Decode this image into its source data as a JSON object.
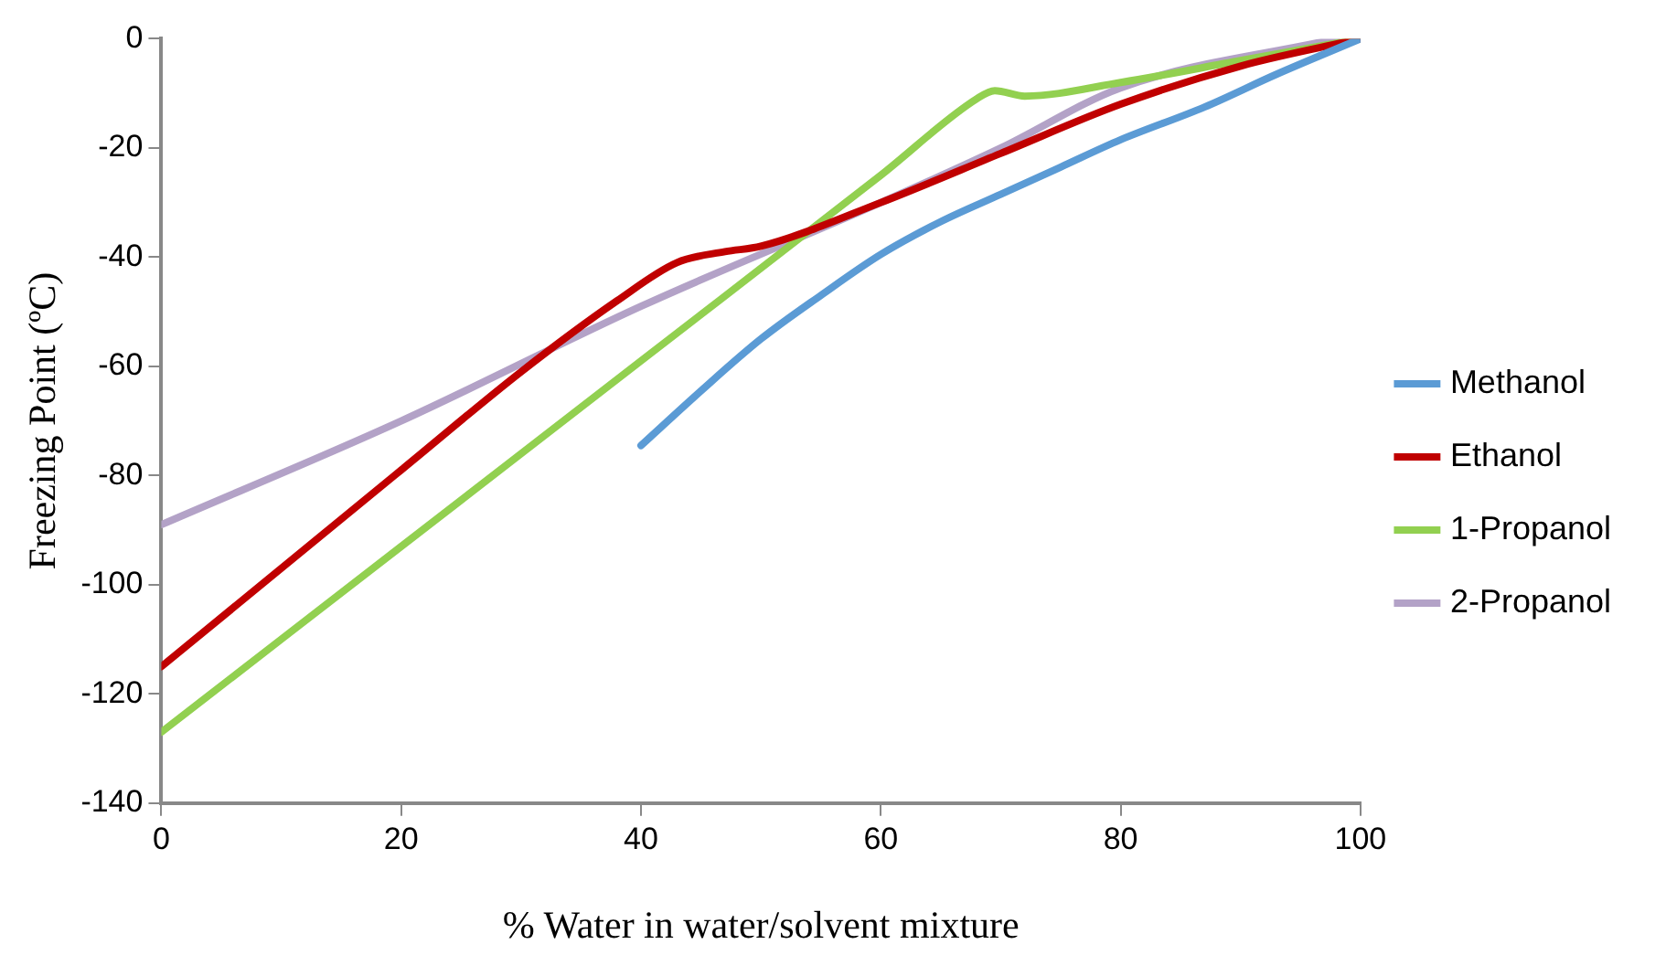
{
  "chart_data": {
    "type": "line",
    "xlabel": "% Water in water/solvent mixture",
    "ylabel": "Freezing Point (ºC)",
    "xlim": [
      0,
      100
    ],
    "xticks": [
      0,
      20,
      40,
      60,
      80,
      100
    ],
    "ylim": [
      -140,
      0
    ],
    "yticks": [
      -140,
      -120,
      -100,
      -80,
      -60,
      -40,
      -20,
      0
    ],
    "grid": false,
    "legend": "right",
    "marker": "none",
    "line_style": "solid",
    "series": [
      {
        "name": "Methanol",
        "color": "#5b9bd5",
        "x": [
          40,
          45,
          50,
          55,
          60,
          65,
          70,
          75,
          80,
          87,
          93,
          100
        ],
        "values": [
          -74.5,
          -64.5,
          -55,
          -47,
          -39.5,
          -33.5,
          -28.5,
          -23.5,
          -18.5,
          -12.5,
          -6.5,
          0
        ]
      },
      {
        "name": "Ethanol",
        "color": "#c00000",
        "x": [
          0,
          20,
          30,
          38,
          43,
          47,
          50,
          60,
          70,
          80,
          90,
          100
        ],
        "values": [
          -115,
          -79,
          -61,
          -48,
          -41,
          -39,
          -38,
          -30,
          -21,
          -12,
          -5,
          0
        ]
      },
      {
        "name": "1-Propanol",
        "color": "#92d050",
        "x": [
          0,
          20,
          40,
          60,
          68,
          69.5,
          72,
          80,
          90,
          100
        ],
        "values": [
          -127,
          -93,
          -59,
          -25,
          -11,
          -9.5,
          -10.5,
          -8,
          -4,
          0
        ]
      },
      {
        "name": "2-Propanol",
        "color": "#b3a2c7",
        "x": [
          0,
          20,
          40,
          60,
          70,
          80,
          98
        ],
        "values": [
          -89,
          -70,
          -49,
          -30,
          -20,
          -9,
          0
        ]
      }
    ]
  }
}
